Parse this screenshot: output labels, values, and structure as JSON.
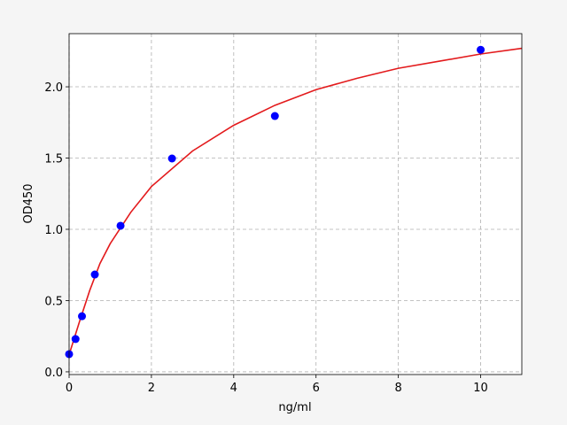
{
  "chart_data": {
    "type": "scatter",
    "xlabel": "ng/ml",
    "ylabel": "OD450",
    "xlim": [
      0,
      11
    ],
    "ylim": [
      -0.019,
      2.373
    ],
    "xticks": [
      0,
      2,
      4,
      6,
      8,
      10
    ],
    "yticks": [
      {
        "value": 0,
        "label": "0.0"
      },
      0.5,
      {
        "value": 1,
        "label": "1.0"
      },
      1.5,
      {
        "value": 2,
        "label": "2.0"
      }
    ],
    "grid": true,
    "series": [
      {
        "kind": "line",
        "color": "#e31a1c",
        "x": [
          0,
          0.25,
          0.5,
          0.75,
          1,
          1.5,
          2,
          3,
          4,
          5,
          6,
          7,
          8,
          9,
          10,
          11
        ],
        "values": [
          0.12,
          0.35,
          0.57,
          0.76,
          0.9,
          1.12,
          1.3,
          1.55,
          1.73,
          1.87,
          1.98,
          2.06,
          2.13,
          2.18,
          2.23,
          2.27
        ]
      },
      {
        "kind": "scatter",
        "color": "#0000ff",
        "x": [
          0,
          0.156,
          0.3125,
          0.625,
          1.25,
          2.5,
          5,
          10
        ],
        "values": [
          0.124,
          0.23,
          0.39,
          0.683,
          1.025,
          1.497,
          1.795,
          2.26
        ]
      }
    ]
  }
}
